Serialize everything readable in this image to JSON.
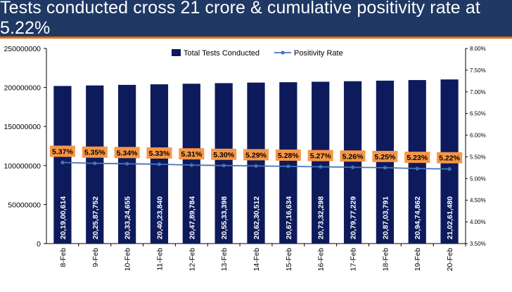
{
  "title": "Tests conducted cross 21 crore & cumulative positivity rate at 5.22%",
  "colors": {
    "title_bg": "#1f3864",
    "title_accent": "#e46c0a",
    "bar": "#0d1a5c",
    "line": "#4a72b8",
    "label_bg": "#f79646"
  },
  "chart_data": {
    "type": "bar",
    "categories": [
      "8-Feb",
      "9-Feb",
      "10-Feb",
      "11-Feb",
      "12-Feb",
      "13-Feb",
      "14-Feb",
      "15-Feb",
      "16-Feb",
      "17-Feb",
      "18-Feb",
      "19-Feb",
      "20-Feb"
    ],
    "series": [
      {
        "name": "Total Tests Conducted",
        "type": "bar",
        "axis": "left",
        "values": [
          201900614,
          202587752,
          203324655,
          204023840,
          204789784,
          205533398,
          206230512,
          206716634,
          207332298,
          207977229,
          208703791,
          209474862,
          210261480
        ],
        "labels": [
          "20,19,00,614",
          "20,25,87,752",
          "20,33,24,655",
          "20,40,23,840",
          "20,47,89,784",
          "20,55,33,398",
          "20,62,30,512",
          "20,67,16,634",
          "20,73,32,298",
          "20,79,77,229",
          "20,87,03,791",
          "20,94,74,862",
          "21,02,61,480"
        ]
      },
      {
        "name": "Positivity Rate",
        "type": "line",
        "axis": "right",
        "values": [
          5.37,
          5.35,
          5.34,
          5.33,
          5.31,
          5.3,
          5.29,
          5.28,
          5.27,
          5.26,
          5.25,
          5.23,
          5.22
        ],
        "labels": [
          "5.37%",
          "5.35%",
          "5.34%",
          "5.33%",
          "5.31%",
          "5.30%",
          "5.29%",
          "5.28%",
          "5.27%",
          "5.26%",
          "5.25%",
          "5.23%",
          "5.22%"
        ]
      }
    ],
    "y_left": {
      "lim": [
        0,
        250000000
      ],
      "ticks": [
        0,
        50000000,
        100000000,
        150000000,
        200000000,
        250000000
      ],
      "tick_labels": [
        "0",
        "50000000",
        "100000000",
        "150000000",
        "200000000",
        "250000000"
      ]
    },
    "y_right": {
      "lim": [
        3.5,
        8.0
      ],
      "ticks": [
        3.5,
        4.0,
        4.5,
        5.0,
        5.5,
        6.0,
        6.5,
        7.0,
        7.5,
        8.0
      ],
      "tick_labels": [
        "3.50%",
        "4.00%",
        "4.50%",
        "5.00%",
        "5.50%",
        "6.00%",
        "6.50%",
        "7.00%",
        "7.50%",
        "8.00%"
      ]
    },
    "legend_position": "top-center",
    "grid": false
  }
}
